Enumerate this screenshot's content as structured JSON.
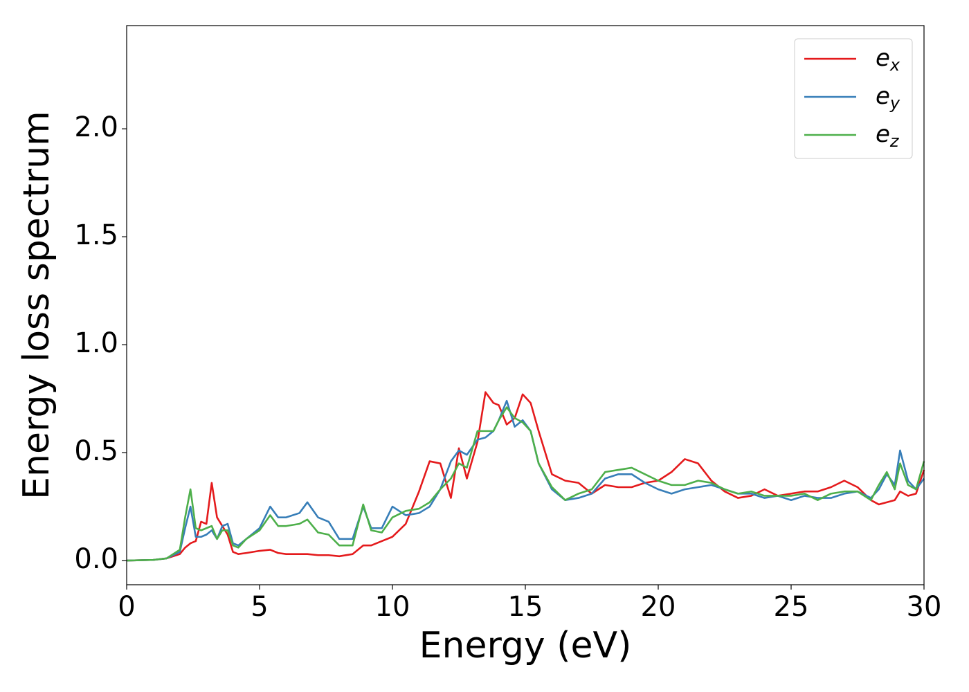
{
  "chart_data": {
    "type": "line",
    "xlabel": "Energy (eV)",
    "ylabel": "Energy loss spectrum",
    "x": [
      0,
      1,
      1.5,
      2,
      2.2,
      2.4,
      2.6,
      2.8,
      3,
      3.2,
      3.4,
      3.6,
      3.8,
      4,
      4.2,
      4.5,
      5,
      5.4,
      5.7,
      6,
      6.5,
      6.8,
      7.2,
      7.6,
      8,
      8.5,
      8.9,
      9.2,
      9.6,
      10,
      10.5,
      11,
      11.4,
      11.8,
      12.2,
      12.5,
      12.8,
      13.2,
      13.5,
      13.8,
      14,
      14.3,
      14.6,
      14.9,
      15.2,
      15.5,
      16,
      16.5,
      17,
      17.5,
      18,
      18.5,
      19,
      19.5,
      20,
      20.5,
      21,
      21.5,
      22,
      22.5,
      23,
      23.5,
      24,
      24.5,
      25,
      25.5,
      26,
      26.5,
      27,
      27.5,
      28,
      28.3,
      28.6,
      28.9,
      29.1,
      29.4,
      29.7,
      30
    ],
    "series": [
      {
        "name": "e_x",
        "color": "#e41a1c",
        "values": [
          0,
          0.003,
          0.01,
          0.03,
          0.06,
          0.08,
          0.09,
          0.18,
          0.17,
          0.36,
          0.2,
          0.16,
          0.12,
          0.04,
          0.03,
          0.035,
          0.045,
          0.05,
          0.035,
          0.03,
          0.03,
          0.03,
          0.025,
          0.025,
          0.02,
          0.03,
          0.07,
          0.07,
          0.09,
          0.11,
          0.17,
          0.32,
          0.46,
          0.45,
          0.29,
          0.52,
          0.38,
          0.55,
          0.78,
          0.73,
          0.72,
          0.63,
          0.66,
          0.77,
          0.73,
          0.6,
          0.4,
          0.37,
          0.36,
          0.31,
          0.35,
          0.34,
          0.34,
          0.36,
          0.37,
          0.41,
          0.47,
          0.45,
          0.37,
          0.32,
          0.29,
          0.3,
          0.33,
          0.3,
          0.31,
          0.32,
          0.32,
          0.34,
          0.37,
          0.34,
          0.28,
          0.26,
          0.27,
          0.28,
          0.32,
          0.3,
          0.31,
          0.42
        ]
      },
      {
        "name": "e_y",
        "color": "#377eb8",
        "values": [
          0,
          0.003,
          0.01,
          0.04,
          0.15,
          0.25,
          0.11,
          0.11,
          0.12,
          0.14,
          0.1,
          0.16,
          0.17,
          0.08,
          0.07,
          0.1,
          0.15,
          0.25,
          0.2,
          0.2,
          0.22,
          0.27,
          0.2,
          0.18,
          0.1,
          0.1,
          0.25,
          0.15,
          0.15,
          0.25,
          0.21,
          0.22,
          0.25,
          0.33,
          0.46,
          0.51,
          0.49,
          0.56,
          0.57,
          0.6,
          0.65,
          0.74,
          0.62,
          0.65,
          0.6,
          0.45,
          0.33,
          0.28,
          0.29,
          0.31,
          0.38,
          0.4,
          0.4,
          0.36,
          0.33,
          0.31,
          0.33,
          0.34,
          0.35,
          0.33,
          0.31,
          0.31,
          0.29,
          0.3,
          0.28,
          0.3,
          0.29,
          0.29,
          0.31,
          0.32,
          0.29,
          0.33,
          0.4,
          0.35,
          0.51,
          0.37,
          0.33,
          0.38
        ]
      },
      {
        "name": "e_z",
        "color": "#4daf4a",
        "values": [
          0,
          0.003,
          0.01,
          0.05,
          0.2,
          0.33,
          0.15,
          0.14,
          0.15,
          0.16,
          0.1,
          0.14,
          0.14,
          0.07,
          0.06,
          0.1,
          0.14,
          0.21,
          0.16,
          0.16,
          0.17,
          0.19,
          0.13,
          0.12,
          0.07,
          0.07,
          0.26,
          0.14,
          0.13,
          0.2,
          0.23,
          0.24,
          0.27,
          0.33,
          0.38,
          0.45,
          0.43,
          0.6,
          0.6,
          0.6,
          0.65,
          0.71,
          0.66,
          0.64,
          0.6,
          0.45,
          0.34,
          0.28,
          0.31,
          0.33,
          0.41,
          0.42,
          0.43,
          0.4,
          0.37,
          0.35,
          0.35,
          0.37,
          0.36,
          0.33,
          0.31,
          0.32,
          0.3,
          0.3,
          0.3,
          0.31,
          0.28,
          0.31,
          0.32,
          0.32,
          0.28,
          0.35,
          0.41,
          0.33,
          0.45,
          0.35,
          0.33,
          0.46
        ]
      }
    ],
    "xlim": [
      0,
      30
    ],
    "xticks": [
      0,
      5,
      10,
      15,
      20,
      25,
      30
    ],
    "ylim": [
      -0.112,
      2.478
    ],
    "yticks": [
      {
        "value": 0,
        "label": "0.0"
      },
      0.5,
      {
        "value": 1,
        "label": "1.0"
      },
      1.5,
      {
        "value": 2,
        "label": "2.0"
      }
    ],
    "legend": "upper right",
    "grid": false
  }
}
